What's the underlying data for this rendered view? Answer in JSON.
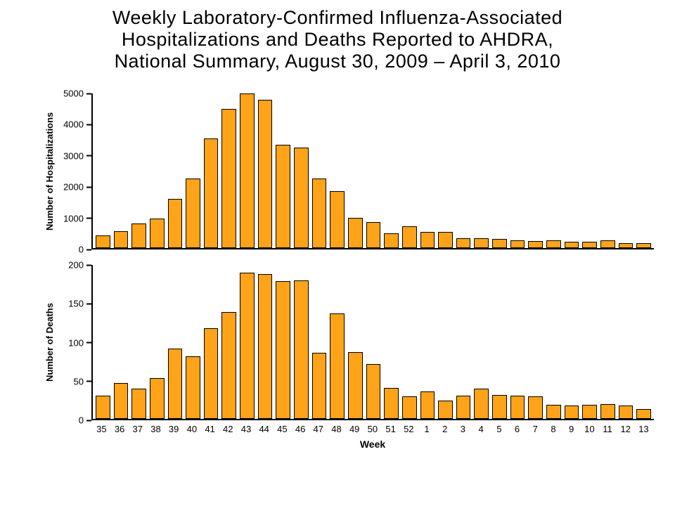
{
  "header": {
    "title_lines": [
      "Weekly Laboratory-Confirmed Influenza-Associated",
      "Hospitalizations and Deaths Reported to AHDRA,",
      "National Summary, August 30, 2009 – April 3, 2010"
    ]
  },
  "colors": {
    "background": "#FFFFFF",
    "text": "#000000",
    "bar": "#FFA318",
    "bar_border": "#000000",
    "axis": "#000000"
  },
  "chart_data": [
    {
      "type": "bar",
      "title": "Weekly Laboratory-Confirmed Influenza-Associated Hospitalizations and Deaths Reported to AHDRA, National Summary, August 30, 2009 – April 3, 2010",
      "ylabel": "Number of Hospitalizations",
      "xlabel": "",
      "ylim": [
        0,
        5000
      ],
      "ytick_step": 1000,
      "grid": false,
      "legend": false,
      "categories": [
        "35",
        "36",
        "37",
        "38",
        "39",
        "40",
        "41",
        "42",
        "43",
        "44",
        "45",
        "46",
        "47",
        "48",
        "49",
        "50",
        "51",
        "52",
        "1",
        "2",
        "3",
        "4",
        "5",
        "6",
        "7",
        "8",
        "9",
        "10",
        "11",
        "12",
        "13"
      ],
      "values": [
        400,
        550,
        800,
        950,
        1600,
        2250,
        3550,
        4500,
        5000,
        4800,
        3350,
        3250,
        2250,
        1850,
        975,
        850,
        475,
        700,
        525,
        525,
        325,
        325,
        300,
        250,
        225,
        250,
        200,
        200,
        250,
        150,
        150
      ]
    },
    {
      "type": "bar",
      "title": "",
      "ylabel": "Number of Deaths",
      "xlabel": "Week",
      "ylim": [
        0,
        200
      ],
      "ytick_step": 50,
      "grid": false,
      "legend": false,
      "categories": [
        "35",
        "36",
        "37",
        "38",
        "39",
        "40",
        "41",
        "42",
        "43",
        "44",
        "45",
        "46",
        "47",
        "48",
        "49",
        "50",
        "51",
        "52",
        "1",
        "2",
        "3",
        "4",
        "5",
        "6",
        "7",
        "8",
        "9",
        "10",
        "11",
        "12",
        "13"
      ],
      "values": [
        30,
        47,
        39,
        53,
        91,
        81,
        118,
        139,
        190,
        188,
        179,
        180,
        86,
        137,
        87,
        71,
        40,
        29,
        36,
        24,
        30,
        39,
        31,
        30,
        29,
        18,
        17,
        18,
        19,
        17,
        13
      ]
    }
  ]
}
